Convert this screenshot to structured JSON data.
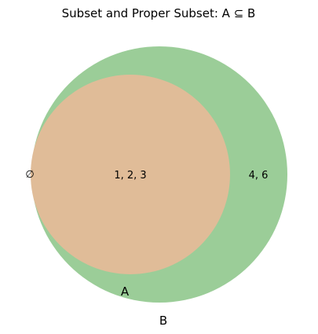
{
  "title": "Subset and Proper Subset: A ⊆ B",
  "sets": {
    "B": {
      "label": "B",
      "color": "#9bcd98"
    },
    "A": {
      "label": "A",
      "color": "#e0bc98"
    }
  },
  "regions": {
    "outside": "∅",
    "a_only_and_b": "1, 2, 3",
    "b_only": "4, 6"
  }
}
